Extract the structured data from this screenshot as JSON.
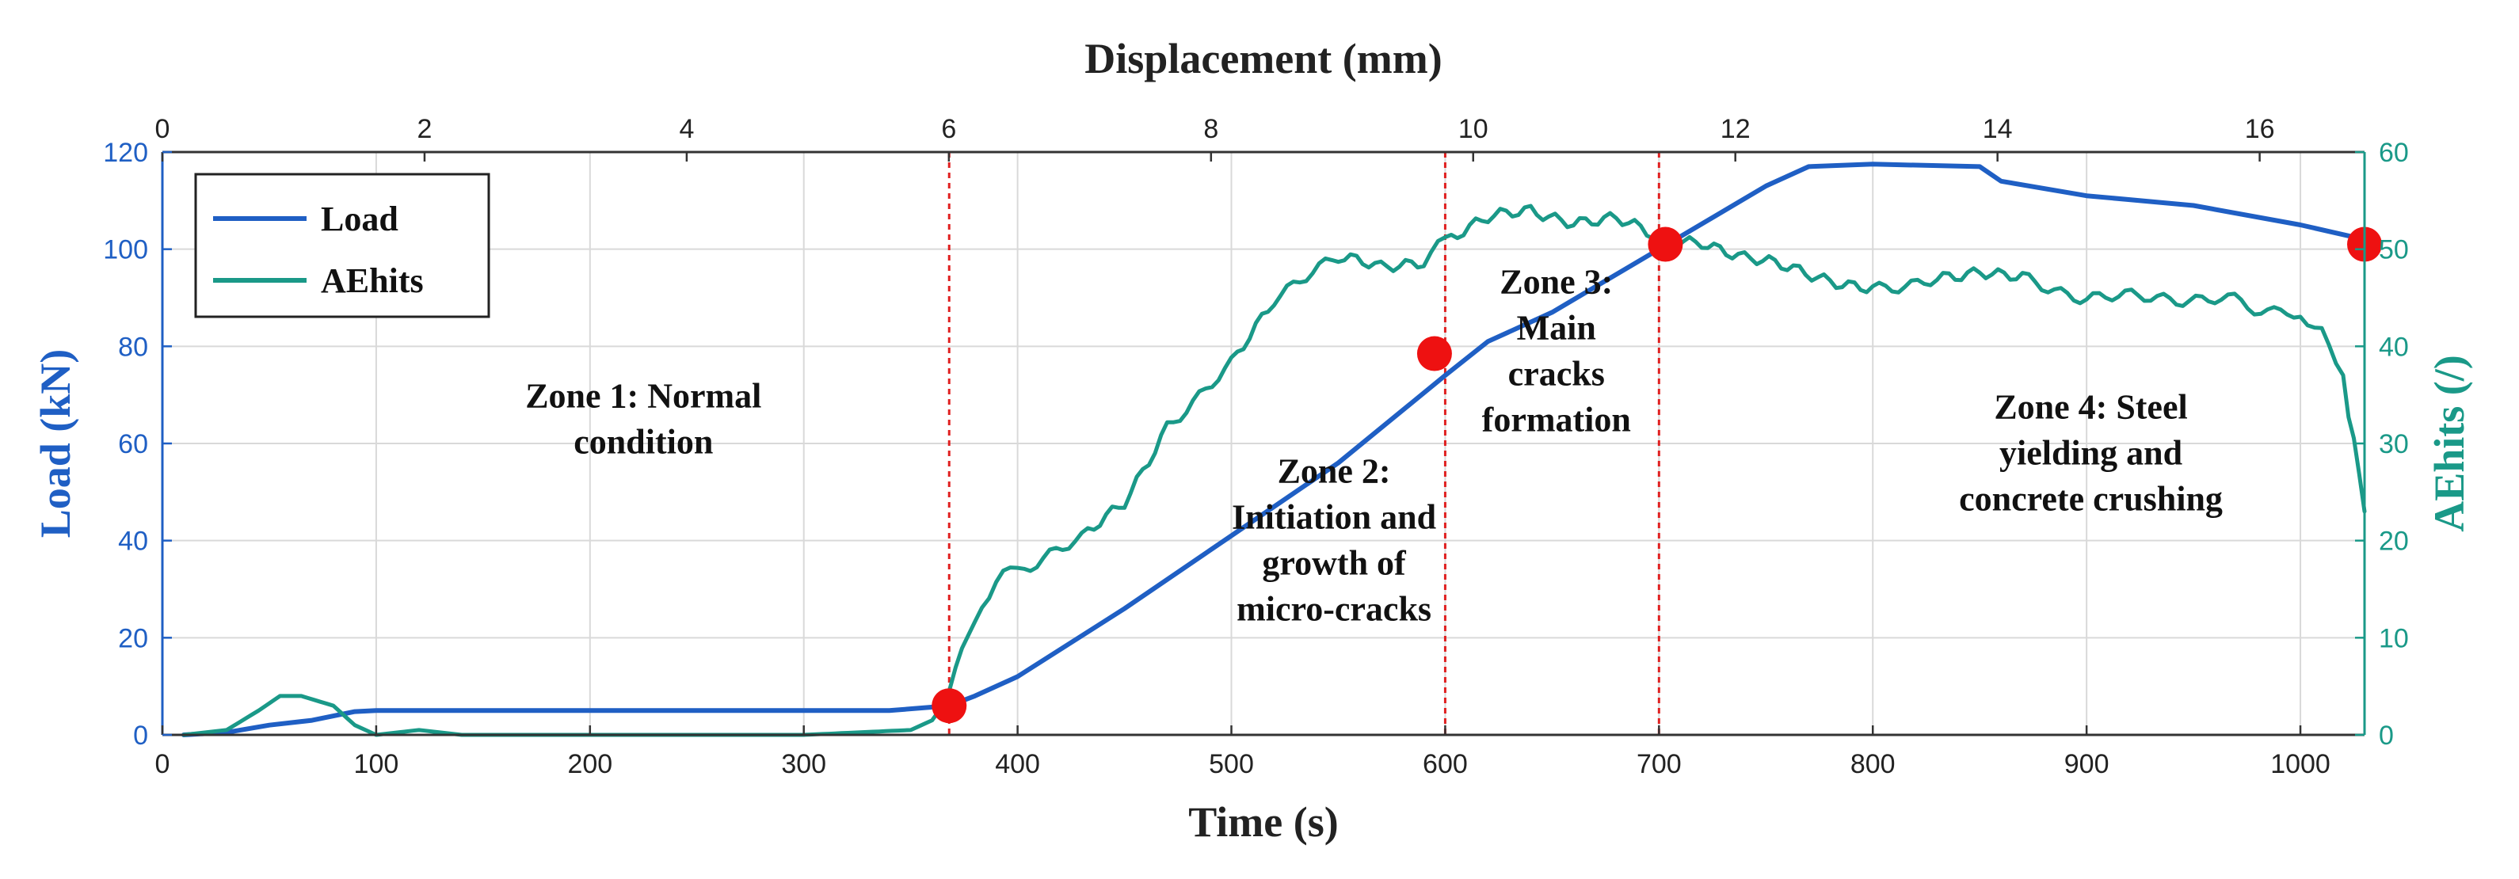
{
  "chart_data": {
    "type": "line",
    "title": "",
    "x_bottom": {
      "label": "Time (s)",
      "lim": [
        0,
        1030
      ],
      "ticks": [
        0,
        100,
        200,
        300,
        400,
        500,
        600,
        700,
        800,
        900,
        1000
      ]
    },
    "x_top": {
      "label": "Displacement (mm)",
      "lim": [
        0,
        16.8
      ],
      "ticks": [
        0,
        2,
        4,
        6,
        8,
        10,
        12,
        14,
        16
      ]
    },
    "y_left": {
      "label": "Load (kN)",
      "lim": [
        0,
        120
      ],
      "ticks": [
        0,
        20,
        40,
        60,
        80,
        100,
        120
      ],
      "color": "#1f5fc4"
    },
    "y_right": {
      "label": "AEhits (/)",
      "lim": [
        0,
        60
      ],
      "ticks": [
        0,
        10,
        20,
        30,
        40,
        50,
        60
      ],
      "color": "#1a9988"
    },
    "grid": true,
    "legend": {
      "position": "top-left",
      "entries": [
        "Load",
        "AEhits"
      ]
    },
    "series": [
      {
        "name": "Load",
        "axis": "left",
        "color": "#1f5fc4",
        "x": [
          10,
          30,
          50,
          70,
          90,
          100,
          150,
          200,
          250,
          300,
          340,
          368,
          380,
          400,
          450,
          500,
          550,
          600,
          620,
          650,
          700,
          750,
          770,
          800,
          850,
          860,
          900,
          950,
          1000,
          1030
        ],
        "y": [
          0,
          0.5,
          2,
          3,
          4.8,
          5,
          5,
          5,
          5,
          5,
          5,
          6,
          8,
          12,
          26,
          41,
          56,
          74,
          81,
          87,
          100,
          113,
          117,
          117.5,
          117,
          114,
          111,
          109,
          105,
          102
        ]
      },
      {
        "name": "AEhits",
        "axis": "right",
        "color": "#1a9988",
        "x": [
          10,
          30,
          45,
          55,
          65,
          80,
          90,
          100,
          120,
          140,
          200,
          300,
          350,
          360,
          365,
          368,
          380,
          390,
          400,
          430,
          450,
          470,
          500,
          520,
          550,
          570,
          590,
          600,
          620,
          640,
          660,
          680,
          700,
          720,
          740,
          760,
          780,
          800,
          830,
          850,
          870,
          900,
          930,
          960,
          1000,
          1010,
          1020,
          1025,
          1030
        ],
        "y": [
          0,
          0.5,
          2.5,
          4,
          4,
          3,
          1,
          0,
          0.5,
          0,
          0,
          0,
          0.5,
          1.5,
          3,
          5,
          12,
          16,
          17,
          20,
          24,
          32,
          38,
          45,
          49,
          48,
          49,
          51,
          53,
          54,
          53,
          53,
          51,
          51,
          49,
          48,
          47,
          46,
          47,
          48,
          47,
          45,
          45,
          45,
          43,
          41,
          37,
          30,
          23
        ]
      }
    ],
    "markers": {
      "color": "#ee1111",
      "points": [
        {
          "x": 368,
          "y": 6
        },
        {
          "x": 595,
          "y": 78.5
        },
        {
          "x": 703,
          "y": 101
        },
        {
          "x": 1030,
          "y": 101
        }
      ]
    },
    "vlines": [
      368,
      600,
      700
    ],
    "annotations": [
      {
        "lines": [
          "Zone 1: Normal",
          "condition"
        ],
        "x": 225,
        "y": 65
      },
      {
        "lines": [
          "Zone 2:",
          "Initiation and",
          "growth of",
          "micro-cracks"
        ],
        "x": 548,
        "y": 40
      },
      {
        "lines": [
          "Zone 3:",
          "Main",
          "cracks",
          "formation"
        ],
        "x": 652,
        "y": 79
      },
      {
        "lines": [
          "Zone 4: Steel",
          "yielding and",
          "concrete crushing"
        ],
        "x": 902,
        "y": 58
      }
    ]
  }
}
